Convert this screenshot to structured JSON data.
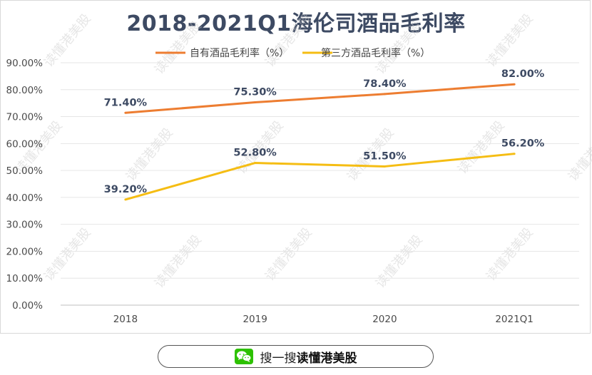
{
  "chart_data": {
    "type": "line",
    "title": "2018-2021Q1海伦司酒品毛利率",
    "categories": [
      "2018",
      "2019",
      "2020",
      "2021Q1"
    ],
    "series": [
      {
        "name": "自有酒品毛利率（%）",
        "color": "#ed7d31",
        "values": [
          71.4,
          75.3,
          78.4,
          82.0
        ],
        "labels": [
          "71.40%",
          "75.30%",
          "78.40%",
          "82.00%"
        ]
      },
      {
        "name": "第三方酒品毛利率（%）",
        "color": "#f5bd13",
        "values": [
          39.2,
          52.8,
          51.5,
          56.2
        ],
        "labels": [
          "39.20%",
          "52.80%",
          "51.50%",
          "56.20%"
        ]
      }
    ],
    "yticks": [
      "0.00%",
      "10.00%",
      "20.00%",
      "30.00%",
      "40.00%",
      "50.00%",
      "60.00%",
      "70.00%",
      "80.00%",
      "90.00%"
    ],
    "ylim": [
      0,
      90
    ],
    "grid": true,
    "legend": "top-center"
  },
  "watermark": "读懂港美股",
  "footer": {
    "prefix": "搜一搜",
    "brand": "读懂港美股"
  }
}
